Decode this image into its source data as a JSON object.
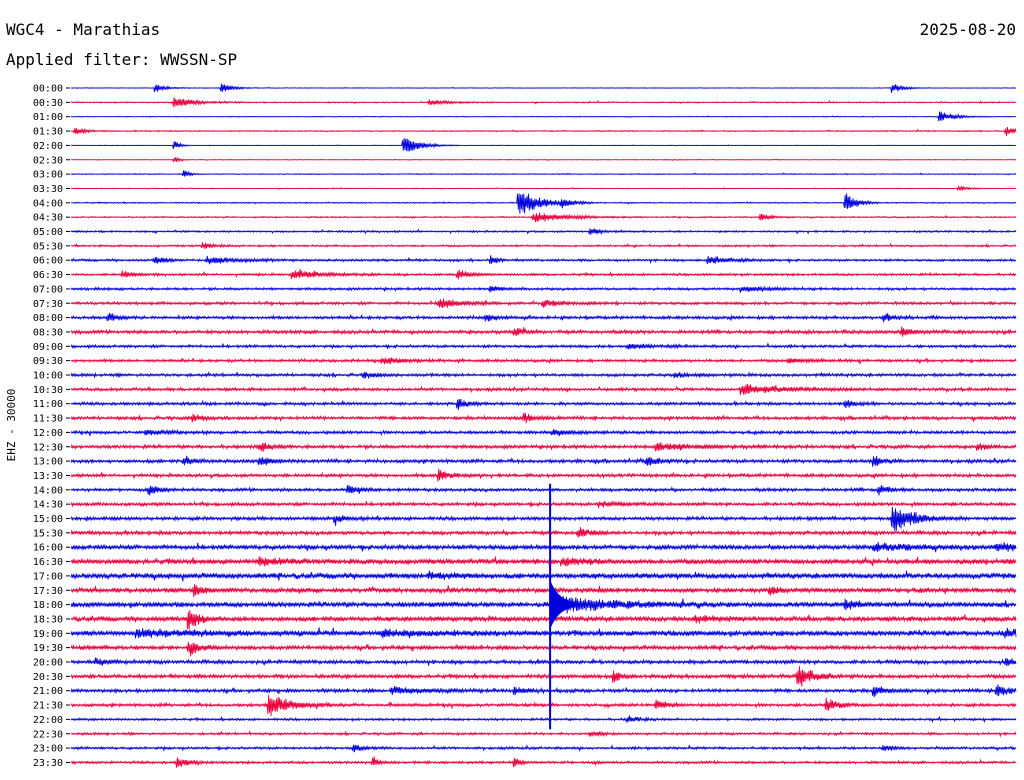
{
  "header": {
    "station_title": "WGC4 - Marathias",
    "filter_label": "Applied filter: WWSSN-SP",
    "date": "2025-08-20"
  },
  "chart_data": {
    "type": "line",
    "title": "WGC4 - Marathias",
    "subtitle": "Applied filter: WWSSN-SP",
    "date": "2025-08-20",
    "ylabel": "EHZ - 30000",
    "row_interval_minutes": 30,
    "colors": [
      "#0000dd",
      "#e8003d"
    ],
    "rows": [
      {
        "label": "00:00",
        "color": "#0000dd",
        "noise": 0.25,
        "events": [
          {
            "x": 0.09,
            "amp": 5,
            "dur": 0.01
          },
          {
            "x": 0.16,
            "amp": 6,
            "dur": 0.01
          },
          {
            "x": 0.87,
            "amp": 6,
            "dur": 0.01
          }
        ]
      },
      {
        "label": "00:30",
        "color": "#e8003d",
        "noise": 0.5,
        "events": [
          {
            "x": 0.11,
            "amp": 6,
            "dur": 0.02
          },
          {
            "x": 0.38,
            "amp": 3,
            "dur": 0.02
          }
        ]
      },
      {
        "label": "01:00",
        "color": "#0000dd",
        "noise": 0.3,
        "events": [
          {
            "x": 0.92,
            "amp": 6,
            "dur": 0.015
          }
        ]
      },
      {
        "label": "01:30",
        "color": "#e8003d",
        "noise": 0.5,
        "events": [
          {
            "x": 0.005,
            "amp": 4,
            "dur": 0.01
          },
          {
            "x": 0.99,
            "amp": 5,
            "dur": 0.01
          }
        ]
      },
      {
        "label": "02:00",
        "color": "#0000dd",
        "noise": 0.2,
        "events": [
          {
            "x": 0.11,
            "amp": 6,
            "dur": 0.005
          },
          {
            "x": 0.352,
            "amp": 12,
            "dur": 0.015
          }
        ]
      },
      {
        "label": "02:30",
        "color": "#e8003d",
        "noise": 0.3,
        "events": [
          {
            "x": 0.11,
            "amp": 3,
            "dur": 0.005
          }
        ]
      },
      {
        "label": "03:00",
        "color": "#0000dd",
        "noise": 0.4,
        "events": [
          {
            "x": 0.12,
            "amp": 5,
            "dur": 0.005
          }
        ]
      },
      {
        "label": "03:30",
        "color": "#e8003d",
        "noise": 0.3,
        "events": [
          {
            "x": 0.94,
            "amp": 3,
            "dur": 0.01
          }
        ]
      },
      {
        "label": "04:00",
        "color": "#0000dd",
        "noise": 0.5,
        "events": [
          {
            "x": 0.474,
            "amp": 16,
            "dur": 0.02
          },
          {
            "x": 0.52,
            "amp": 5,
            "dur": 0.01
          },
          {
            "x": 0.82,
            "amp": 12,
            "dur": 0.01
          }
        ]
      },
      {
        "label": "04:30",
        "color": "#e8003d",
        "noise": 0.6,
        "events": [
          {
            "x": 0.49,
            "amp": 6,
            "dur": 0.03
          },
          {
            "x": 0.73,
            "amp": 4,
            "dur": 0.01
          }
        ]
      },
      {
        "label": "05:00",
        "color": "#0000dd",
        "noise": 0.8,
        "events": [
          {
            "x": 0.55,
            "amp": 4,
            "dur": 0.01
          }
        ]
      },
      {
        "label": "05:30",
        "color": "#e8003d",
        "noise": 0.8,
        "events": [
          {
            "x": 0.14,
            "amp": 4,
            "dur": 0.01
          }
        ]
      },
      {
        "label": "06:00",
        "color": "#0000dd",
        "noise": 1.0,
        "events": [
          {
            "x": 0.09,
            "amp": 5,
            "dur": 0.01
          },
          {
            "x": 0.145,
            "amp": 4,
            "dur": 0.03
          },
          {
            "x": 0.445,
            "amp": 7,
            "dur": 0.005
          },
          {
            "x": 0.675,
            "amp": 4,
            "dur": 0.02
          }
        ]
      },
      {
        "label": "06:30",
        "color": "#e8003d",
        "noise": 1.0,
        "events": [
          {
            "x": 0.055,
            "amp": 4,
            "dur": 0.01
          },
          {
            "x": 0.235,
            "amp": 5,
            "dur": 0.03
          },
          {
            "x": 0.41,
            "amp": 6,
            "dur": 0.01
          }
        ]
      },
      {
        "label": "07:00",
        "color": "#0000dd",
        "noise": 1.1,
        "events": [
          {
            "x": 0.445,
            "amp": 3,
            "dur": 0.01
          },
          {
            "x": 0.71,
            "amp": 3,
            "dur": 0.02
          }
        ]
      },
      {
        "label": "07:30",
        "color": "#e8003d",
        "noise": 1.2,
        "events": [
          {
            "x": 0.39,
            "amp": 6,
            "dur": 0.02
          },
          {
            "x": 0.5,
            "amp": 4,
            "dur": 0.02
          }
        ]
      },
      {
        "label": "08:00",
        "color": "#0000dd",
        "noise": 1.3,
        "events": [
          {
            "x": 0.04,
            "amp": 5,
            "dur": 0.01
          },
          {
            "x": 0.44,
            "amp": 4,
            "dur": 0.01
          },
          {
            "x": 0.86,
            "amp": 5,
            "dur": 0.01
          }
        ]
      },
      {
        "label": "08:30",
        "color": "#e8003d",
        "noise": 1.5,
        "events": [
          {
            "x": 0.47,
            "amp": 5,
            "dur": 0.01
          },
          {
            "x": 0.88,
            "amp": 4,
            "dur": 0.01
          }
        ]
      },
      {
        "label": "09:00",
        "color": "#0000dd",
        "noise": 1.2,
        "events": [
          {
            "x": 0.59,
            "amp": 3,
            "dur": 0.02
          }
        ]
      },
      {
        "label": "09:30",
        "color": "#e8003d",
        "noise": 1.2,
        "events": [
          {
            "x": 0.33,
            "amp": 4,
            "dur": 0.02
          },
          {
            "x": 0.76,
            "amp": 3,
            "dur": 0.02
          }
        ]
      },
      {
        "label": "10:00",
        "color": "#0000dd",
        "noise": 1.3,
        "events": [
          {
            "x": 0.31,
            "amp": 4,
            "dur": 0.01
          },
          {
            "x": 0.64,
            "amp": 3,
            "dur": 0.01
          }
        ]
      },
      {
        "label": "10:30",
        "color": "#e8003d",
        "noise": 1.3,
        "events": [
          {
            "x": 0.71,
            "amp": 6,
            "dur": 0.04
          }
        ]
      },
      {
        "label": "11:00",
        "color": "#0000dd",
        "noise": 1.3,
        "events": [
          {
            "x": 0.41,
            "amp": 5,
            "dur": 0.01
          },
          {
            "x": 0.82,
            "amp": 4,
            "dur": 0.01
          }
        ]
      },
      {
        "label": "11:30",
        "color": "#e8003d",
        "noise": 1.4,
        "events": [
          {
            "x": 0.48,
            "amp": 5,
            "dur": 0.01
          },
          {
            "x": 0.13,
            "amp": 4,
            "dur": 0.01
          }
        ]
      },
      {
        "label": "12:00",
        "color": "#0000dd",
        "noise": 1.3,
        "events": [
          {
            "x": 0.08,
            "amp": 3,
            "dur": 0.02
          },
          {
            "x": 0.51,
            "amp": 3,
            "dur": 0.02
          }
        ]
      },
      {
        "label": "12:30",
        "color": "#e8003d",
        "noise": 1.5,
        "events": [
          {
            "x": 0.2,
            "amp": 5,
            "dur": 0.01
          },
          {
            "x": 0.62,
            "amp": 4,
            "dur": 0.04
          },
          {
            "x": 0.96,
            "amp": 4,
            "dur": 0.01
          }
        ]
      },
      {
        "label": "13:00",
        "color": "#0000dd",
        "noise": 1.5,
        "events": [
          {
            "x": 0.12,
            "amp": 5,
            "dur": 0.01
          },
          {
            "x": 0.2,
            "amp": 5,
            "dur": 0.01
          },
          {
            "x": 0.61,
            "amp": 5,
            "dur": 0.01
          },
          {
            "x": 0.85,
            "amp": 6,
            "dur": 0.01
          }
        ]
      },
      {
        "label": "13:30",
        "color": "#e8003d",
        "noise": 1.4,
        "events": [
          {
            "x": 0.39,
            "amp": 8,
            "dur": 0.01
          }
        ]
      },
      {
        "label": "14:00",
        "color": "#0000dd",
        "noise": 1.4,
        "events": [
          {
            "x": 0.083,
            "amp": 6,
            "dur": 0.01
          },
          {
            "x": 0.293,
            "amp": 5,
            "dur": 0.01
          },
          {
            "x": 0.855,
            "amp": 6,
            "dur": 0.01
          }
        ]
      },
      {
        "label": "14:30",
        "color": "#e8003d",
        "noise": 1.4,
        "events": [
          {
            "x": 0.56,
            "amp": 3,
            "dur": 0.02
          }
        ]
      },
      {
        "label": "15:00",
        "color": "#0000dd",
        "noise": 1.5,
        "events": [
          {
            "x": 0.87,
            "amp": 18,
            "dur": 0.02
          },
          {
            "x": 0.28,
            "amp": 5,
            "dur": 0.01
          }
        ]
      },
      {
        "label": "15:30",
        "color": "#e8003d",
        "noise": 1.6,
        "events": [
          {
            "x": 0.537,
            "amp": 6,
            "dur": 0.01
          }
        ]
      },
      {
        "label": "16:00",
        "color": "#0000dd",
        "noise": 2.0,
        "events": [
          {
            "x": 0.85,
            "amp": 4,
            "dur": 0.05
          },
          {
            "x": 0.98,
            "amp": 4,
            "dur": 0.02
          }
        ]
      },
      {
        "label": "16:30",
        "color": "#e8003d",
        "noise": 2.2,
        "events": [
          {
            "x": 0.2,
            "amp": 4,
            "dur": 0.02
          },
          {
            "x": 0.52,
            "amp": 4,
            "dur": 0.02
          }
        ]
      },
      {
        "label": "17:00",
        "color": "#0000dd",
        "noise": 2.5,
        "events": [
          {
            "x": 0.38,
            "amp": 4,
            "dur": 0.02
          }
        ]
      },
      {
        "label": "17:30",
        "color": "#e8003d",
        "noise": 2.0,
        "events": [
          {
            "x": 0.13,
            "amp": 6,
            "dur": 0.01
          },
          {
            "x": 0.74,
            "amp": 4,
            "dur": 0.01
          }
        ]
      },
      {
        "label": "18:00",
        "color": "#0000dd",
        "noise": 2.3,
        "events": [
          {
            "x": 0.52,
            "amp": 10,
            "dur": 0.05
          },
          {
            "x": 0.82,
            "amp": 6,
            "dur": 0.01
          }
        ]
      },
      {
        "label": "18:30",
        "color": "#e8003d",
        "noise": 2.1,
        "events": [
          {
            "x": 0.125,
            "amp": 14,
            "dur": 0.01
          },
          {
            "x": 0.66,
            "amp": 4,
            "dur": 0.02
          }
        ]
      },
      {
        "label": "19:00",
        "color": "#0000dd",
        "noise": 2.4,
        "events": [
          {
            "x": 0.07,
            "amp": 4,
            "dur": 0.06
          },
          {
            "x": 0.33,
            "amp": 3,
            "dur": 0.05
          },
          {
            "x": 0.99,
            "amp": 5,
            "dur": 0.01
          }
        ]
      },
      {
        "label": "19:30",
        "color": "#e8003d",
        "noise": 1.8,
        "events": [
          {
            "x": 0.125,
            "amp": 8,
            "dur": 0.01
          }
        ]
      },
      {
        "label": "20:00",
        "color": "#0000dd",
        "noise": 1.6,
        "events": [
          {
            "x": 0.027,
            "amp": 4,
            "dur": 0.01
          },
          {
            "x": 0.99,
            "amp": 4,
            "dur": 0.01
          }
        ]
      },
      {
        "label": "20:30",
        "color": "#e8003d",
        "noise": 1.6,
        "events": [
          {
            "x": 0.575,
            "amp": 8,
            "dur": 0.005
          },
          {
            "x": 0.77,
            "amp": 12,
            "dur": 0.015
          }
        ]
      },
      {
        "label": "21:00",
        "color": "#0000dd",
        "noise": 1.5,
        "events": [
          {
            "x": 0.34,
            "amp": 4,
            "dur": 0.04
          },
          {
            "x": 0.47,
            "amp": 4,
            "dur": 0.01
          },
          {
            "x": 0.85,
            "amp": 6,
            "dur": 0.01
          },
          {
            "x": 0.98,
            "amp": 8,
            "dur": 0.01
          }
        ]
      },
      {
        "label": "21:30",
        "color": "#e8003d",
        "noise": 1.3,
        "events": [
          {
            "x": 0.21,
            "amp": 14,
            "dur": 0.02
          },
          {
            "x": 0.62,
            "amp": 5,
            "dur": 0.01
          },
          {
            "x": 0.8,
            "amp": 9,
            "dur": 0.01
          }
        ]
      },
      {
        "label": "22:00",
        "color": "#0000dd",
        "noise": 1.0,
        "events": [
          {
            "x": 0.59,
            "amp": 4,
            "dur": 0.01
          }
        ]
      },
      {
        "label": "22:30",
        "color": "#e8003d",
        "noise": 1.0,
        "events": [
          {
            "x": 0.55,
            "amp": 3,
            "dur": 0.01
          }
        ]
      },
      {
        "label": "23:00",
        "color": "#0000dd",
        "noise": 1.1,
        "events": [
          {
            "x": 0.3,
            "amp": 4,
            "dur": 0.01
          },
          {
            "x": 0.86,
            "amp": 3,
            "dur": 0.01
          }
        ]
      },
      {
        "label": "23:30",
        "color": "#e8003d",
        "noise": 1.1,
        "events": [
          {
            "x": 0.113,
            "amp": 6,
            "dur": 0.01
          },
          {
            "x": 0.32,
            "amp": 6,
            "dur": 0.005
          },
          {
            "x": 0.47,
            "amp": 6,
            "dur": 0.005
          }
        ]
      }
    ],
    "major_event": {
      "start_row": "14:00",
      "end_row": "22:00",
      "x": 0.507
    }
  }
}
